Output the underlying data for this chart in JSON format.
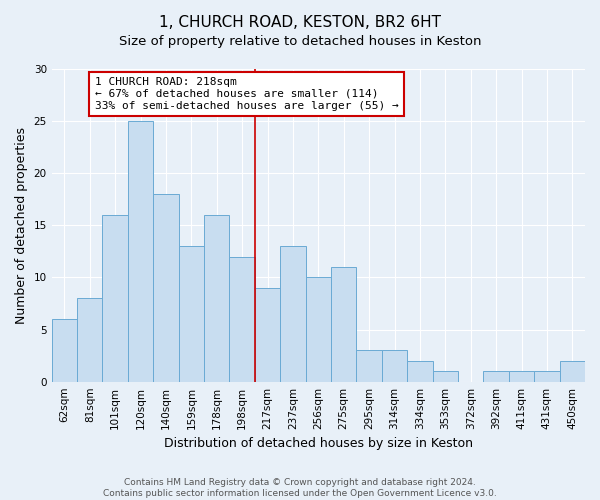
{
  "title": "1, CHURCH ROAD, KESTON, BR2 6HT",
  "subtitle": "Size of property relative to detached houses in Keston",
  "xlabel": "Distribution of detached houses by size in Keston",
  "ylabel": "Number of detached properties",
  "categories": [
    "62sqm",
    "81sqm",
    "101sqm",
    "120sqm",
    "140sqm",
    "159sqm",
    "178sqm",
    "198sqm",
    "217sqm",
    "237sqm",
    "256sqm",
    "275sqm",
    "295sqm",
    "314sqm",
    "334sqm",
    "353sqm",
    "372sqm",
    "392sqm",
    "411sqm",
    "431sqm",
    "450sqm"
  ],
  "values": [
    6,
    8,
    16,
    25,
    18,
    13,
    16,
    12,
    9,
    13,
    10,
    11,
    3,
    3,
    2,
    1,
    0,
    1,
    1,
    1,
    2
  ],
  "bar_color": "#c8ddf0",
  "bar_edge_color": "#6aaad4",
  "reference_line_color": "#cc0000",
  "annotation_title": "1 CHURCH ROAD: 218sqm",
  "annotation_line1": "← 67% of detached houses are smaller (114)",
  "annotation_line2": "33% of semi-detached houses are larger (55) →",
  "annotation_box_color": "#ffffff",
  "annotation_box_edge_color": "#cc0000",
  "ylim": [
    0,
    30
  ],
  "yticks": [
    0,
    5,
    10,
    15,
    20,
    25,
    30
  ],
  "footer_line1": "Contains HM Land Registry data © Crown copyright and database right 2024.",
  "footer_line2": "Contains public sector information licensed under the Open Government Licence v3.0.",
  "background_color": "#e8f0f8",
  "grid_color": "#ffffff",
  "title_fontsize": 11,
  "subtitle_fontsize": 9.5,
  "axis_label_fontsize": 9,
  "tick_fontsize": 7.5,
  "footer_fontsize": 6.5,
  "annotation_fontsize": 8
}
